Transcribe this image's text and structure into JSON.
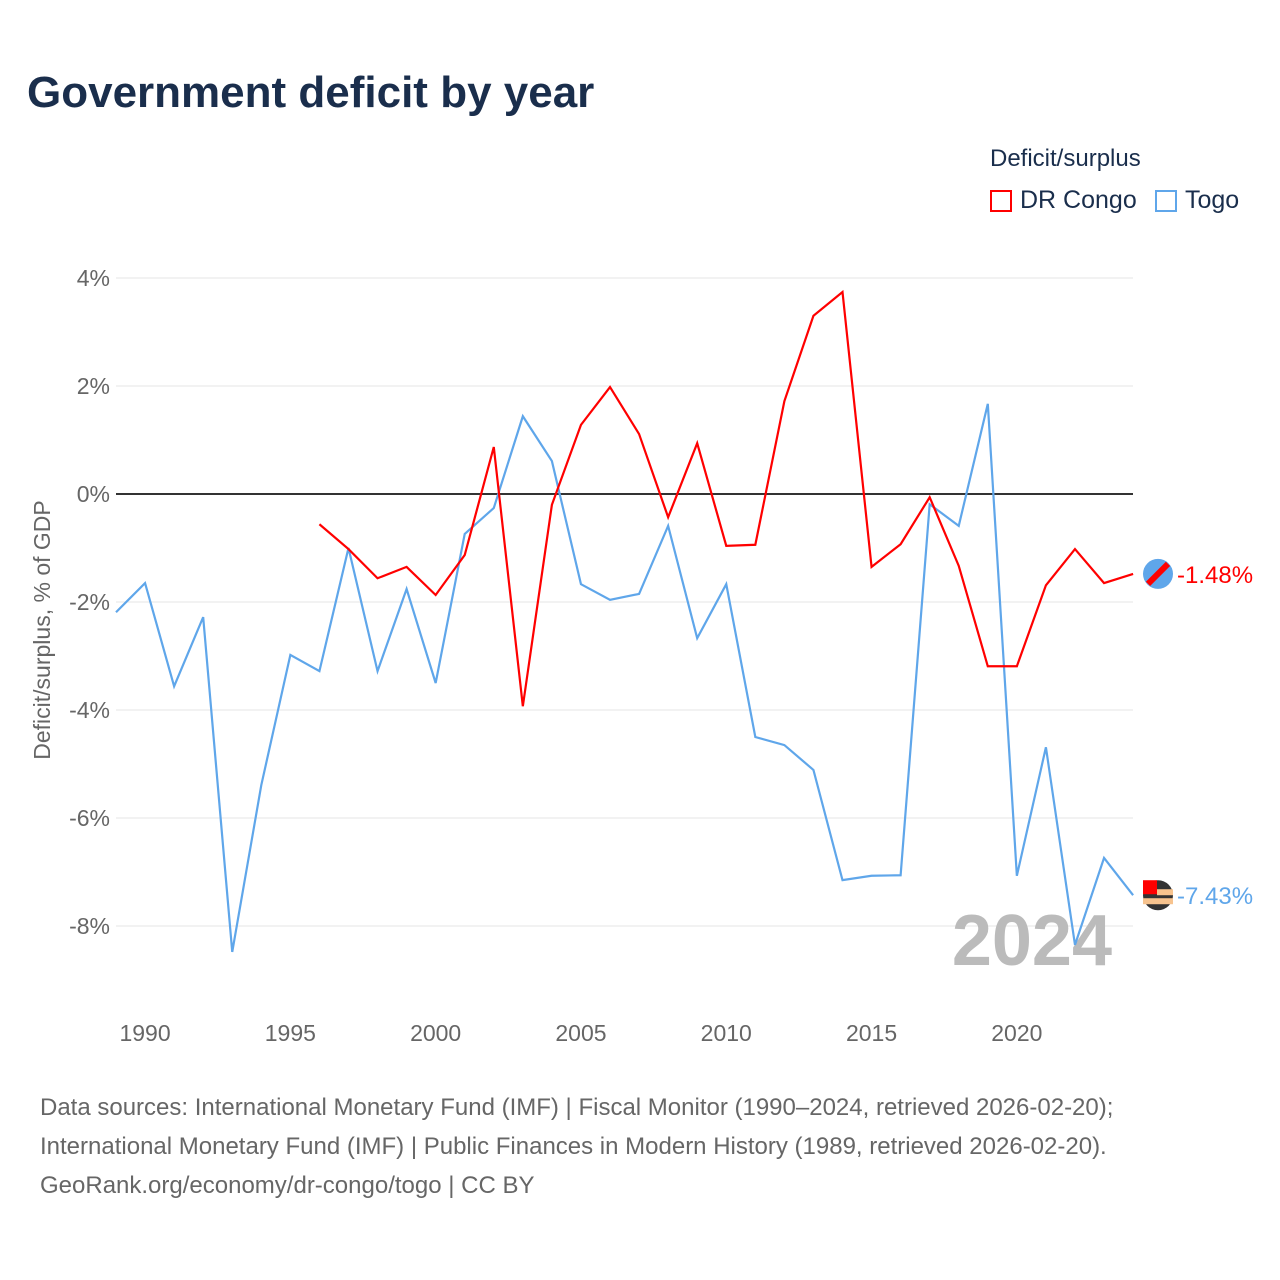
{
  "chart_data": {
    "type": "line",
    "title": "Government deficit by year",
    "ylabel": "Deficit/surplus, % of GDP",
    "xlabel": "",
    "ylim": [
      -10,
      4.3
    ],
    "xlim": [
      1989,
      2024
    ],
    "yticks": [
      4,
      2,
      0,
      -2,
      -4,
      -6,
      -8
    ],
    "ytick_labels": [
      "4%",
      "2%",
      "0%",
      "-2%",
      "-4%",
      "-6%",
      "-8%"
    ],
    "xticks": [
      1990,
      1995,
      2000,
      2005,
      2010,
      2015,
      2020
    ],
    "xtick_labels": [
      "1990",
      "1995",
      "2000",
      "2005",
      "2010",
      "2015",
      "2020"
    ],
    "legend_title": "Deficit/surplus",
    "legend_placement": "top-right",
    "year_watermark": "2024",
    "series": [
      {
        "name": "DR Congo",
        "color": "#ff0000",
        "end_label": "-1.48%",
        "x": [
          1996,
          1997,
          1998,
          1999,
          2000,
          2001,
          2002,
          2003,
          2004,
          2005,
          2006,
          2007,
          2008,
          2009,
          2010,
          2011,
          2012,
          2013,
          2014,
          2015,
          2016,
          2017,
          2018,
          2019,
          2020,
          2021,
          2022,
          2023,
          2024
        ],
        "values": [
          -0.56,
          -1.02,
          -1.56,
          -1.35,
          -1.87,
          -1.13,
          0.87,
          -3.93,
          -0.2,
          1.28,
          1.98,
          1.11,
          -0.43,
          0.94,
          -0.96,
          -0.94,
          1.72,
          3.3,
          3.74,
          -1.35,
          -0.93,
          -0.06,
          -1.33,
          -3.19,
          -3.19,
          -1.69,
          -1.02,
          -1.65,
          -1.48
        ]
      },
      {
        "name": "Togo",
        "color": "#5fa6ea",
        "end_label": "-7.43%",
        "x": [
          1989,
          1990,
          1991,
          1992,
          1993,
          1994,
          1995,
          1996,
          1997,
          1998,
          1999,
          2000,
          2001,
          2002,
          2003,
          2004,
          2005,
          2006,
          2007,
          2008,
          2009,
          2010,
          2011,
          2012,
          2013,
          2014,
          2015,
          2016,
          2017,
          2018,
          2019,
          2020,
          2021,
          2022,
          2023,
          2024
        ],
        "values": [
          -2.19,
          -1.65,
          -3.56,
          -2.28,
          -8.48,
          -5.39,
          -2.98,
          -3.28,
          -1.0,
          -3.28,
          -1.76,
          -3.5,
          -0.74,
          -0.26,
          1.44,
          0.61,
          -1.67,
          -1.96,
          -1.85,
          -0.59,
          -2.67,
          -1.67,
          -4.5,
          -4.65,
          -5.11,
          -7.15,
          -7.07,
          -7.06,
          -0.19,
          -0.59,
          1.67,
          -7.07,
          -4.69,
          -8.35,
          -6.74,
          -7.43
        ]
      }
    ]
  },
  "source_lines": [
    "Data sources: International Monetary Fund (IMF) | Fiscal Monitor (1990–2024, retrieved 2026-02-20);",
    "International Monetary Fund (IMF) | Public Finances in Modern History (1989, retrieved 2026-02-20).",
    "GeoRank.org/economy/dr-congo/togo | CC BY"
  ]
}
